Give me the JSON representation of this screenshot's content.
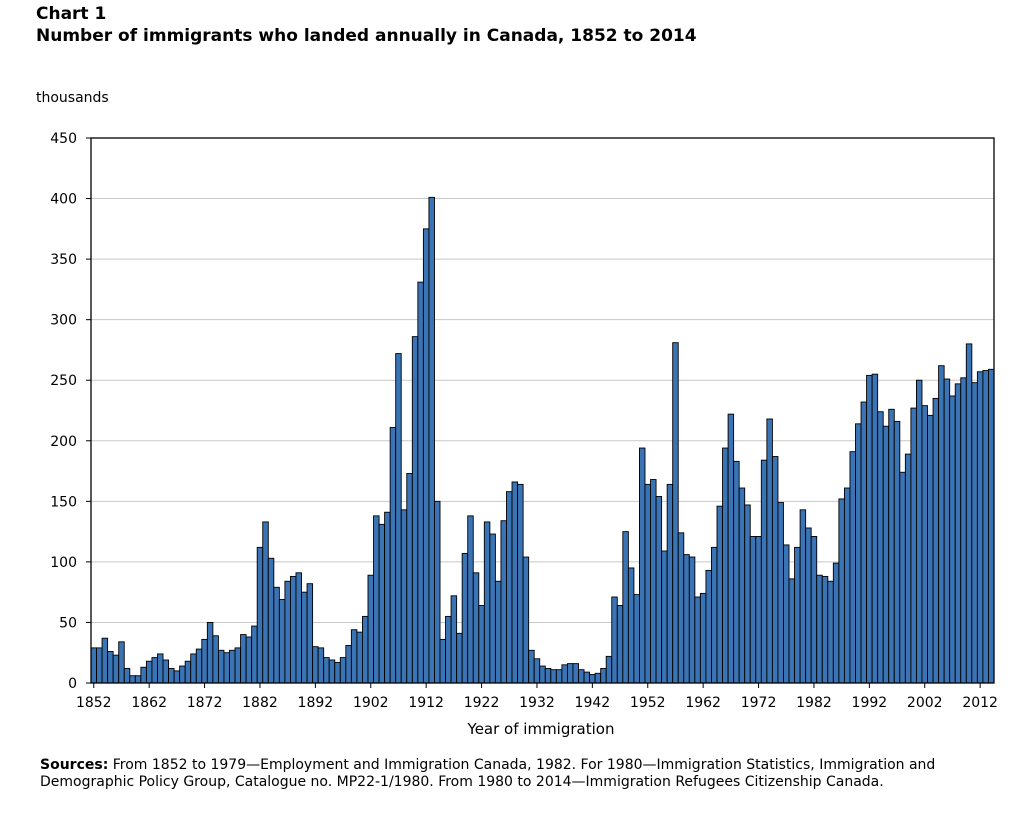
{
  "header": {
    "chart_number": "Chart 1",
    "title": "Number of immigrants who landed annually in Canada, 1852 to 2014"
  },
  "footer": {
    "sources_label": "Sources:",
    "sources_text": " From 1852 to 1979—Employment and Immigration Canada, 1982. For 1980—Immigration Statistics, Immigration and Demographic Policy Group, Catalogue no. MP22-1/1980. From 1980 to 2014—Immigration Refugees Citizenship Canada."
  },
  "colors": {
    "bar": "#3b74b4",
    "bar_edge": "#000000",
    "grid": "#c8c8c8"
  },
  "chart_data": {
    "type": "bar",
    "title": "Number of immigrants who landed annually in Canada, 1852 to 2014",
    "unit_label": "thousands",
    "xlabel": "Year of immigration",
    "ylabel": "thousands",
    "ylim": [
      0,
      450
    ],
    "yticks": [
      0,
      50,
      100,
      150,
      200,
      250,
      300,
      350,
      400,
      450
    ],
    "xtick_labels": [
      "1852",
      "1862",
      "1872",
      "1882",
      "1892",
      "1902",
      "1912",
      "1922",
      "1932",
      "1942",
      "1952",
      "1962",
      "1972",
      "1982",
      "1992",
      "2002",
      "2012"
    ],
    "grid": true,
    "year_start": 1852,
    "year_end": 2014,
    "values": [
      29,
      29,
      37,
      26,
      23,
      34,
      12,
      6,
      6,
      13,
      18,
      21,
      24,
      19,
      12,
      10,
      14,
      18,
      24,
      28,
      36,
      50,
      39,
      27,
      25,
      27,
      29,
      40,
      38,
      47,
      112,
      133,
      103,
      79,
      69,
      84,
      88,
      91,
      75,
      82,
      30,
      29,
      21,
      19,
      17,
      21,
      31,
      44,
      42,
      55,
      89,
      138,
      131,
      141,
      211,
      272,
      143,
      173,
      286,
      331,
      375,
      401,
      150,
      36,
      55,
      72,
      41,
      107,
      138,
      91,
      64,
      133,
      123,
      84,
      134,
      158,
      166,
      164,
      104,
      27,
      20,
      14,
      12,
      11,
      11,
      15,
      16,
      16,
      11,
      9,
      7,
      8,
      12,
      22,
      71,
      64,
      125,
      95,
      73,
      194,
      164,
      168,
      154,
      109,
      164,
      281,
      124,
      106,
      104,
      71,
      74,
      93,
      112,
      146,
      194,
      222,
      183,
      161,
      147,
      121,
      121,
      184,
      218,
      187,
      149,
      114,
      86,
      112,
      143,
      128,
      121,
      89,
      88,
      84,
      99,
      152,
      161,
      191,
      214,
      232,
      254,
      255,
      224,
      212,
      226,
      216,
      174,
      189,
      227,
      250,
      229,
      221,
      235,
      262,
      251,
      237,
      247,
      252,
      280,
      248,
      257,
      258,
      259
    ]
  }
}
